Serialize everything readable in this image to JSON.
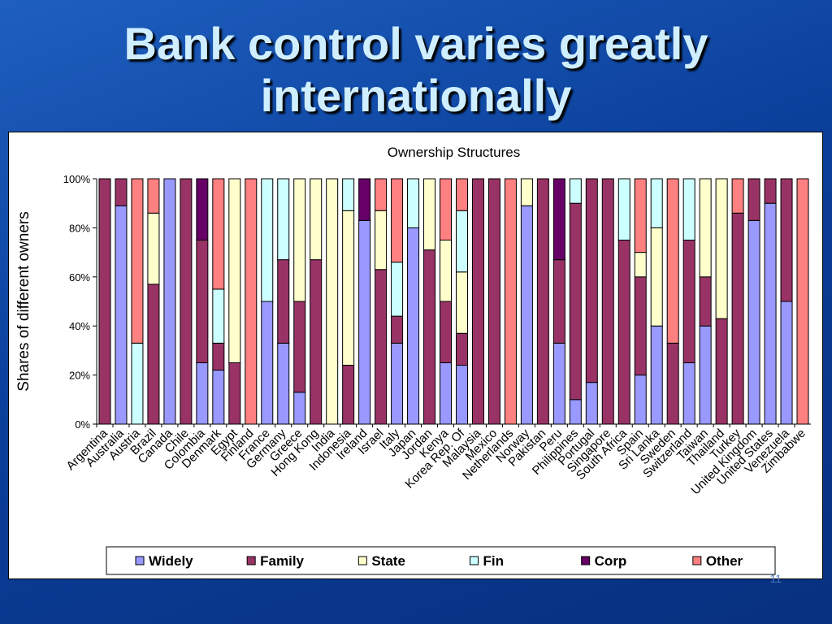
{
  "title": "Bank control varies greatly internationally",
  "page_number": "11",
  "chart_data": {
    "type": "bar",
    "stacked": true,
    "title": "Ownership Structures",
    "y_label": "Shares of different owners",
    "categories": [
      "Argentina",
      "Australia",
      "Austria",
      "Brazil",
      "Canada",
      "Chile",
      "Colombia",
      "Denmark",
      "Egypt",
      "Finland",
      "France",
      "Germany",
      "Greece",
      "Hong Kong",
      "India",
      "Indonesia",
      "Ireland",
      "Israel",
      "Italy",
      "Japan",
      "Jordan",
      "Kenya",
      "Korea Rep. Of",
      "Malaysia",
      "Mexico",
      "Netherlands",
      "Norway",
      "Pakistan",
      "Peru",
      "Philippines",
      "Portugal",
      "Singapore",
      "South Africa",
      "Spain",
      "Sri Lanka",
      "Sweden",
      "Switzerland",
      "Taiwan",
      "Thailand",
      "Turkey",
      "United Kingdom",
      "United States",
      "Venezuela",
      "Zimbabwe"
    ],
    "series": [
      {
        "name": "Widely",
        "color": "#9999ff",
        "values": [
          0,
          89,
          0,
          0,
          100,
          0,
          25,
          22,
          0,
          0,
          50,
          33,
          13,
          0,
          0,
          0,
          83,
          0,
          33,
          80,
          0,
          25,
          24,
          0,
          0,
          0,
          89,
          0,
          33,
          10,
          17,
          0,
          0,
          20,
          40,
          0,
          25,
          40,
          0,
          0,
          83,
          90,
          50,
          0
        ]
      },
      {
        "name": "Family",
        "color": "#993366",
        "values": [
          100,
          11,
          0,
          57,
          0,
          100,
          50,
          11,
          25,
          0,
          0,
          34,
          37,
          67,
          0,
          24,
          0,
          63,
          11,
          0,
          71,
          25,
          13,
          100,
          100,
          0,
          0,
          100,
          34,
          80,
          83,
          100,
          75,
          40,
          0,
          33,
          50,
          20,
          43,
          86,
          17,
          10,
          50,
          0
        ]
      },
      {
        "name": "State",
        "color": "#ffffcc",
        "values": [
          0,
          0,
          0,
          29,
          0,
          0,
          0,
          0,
          75,
          0,
          0,
          0,
          50,
          33,
          100,
          63,
          0,
          24,
          0,
          0,
          29,
          25,
          25,
          0,
          0,
          0,
          11,
          0,
          0,
          0,
          0,
          0,
          0,
          10,
          40,
          0,
          0,
          40,
          57,
          0,
          0,
          0,
          0,
          0
        ]
      },
      {
        "name": "Fin",
        "color": "#ccffff",
        "values": [
          0,
          0,
          33,
          0,
          0,
          0,
          0,
          22,
          0,
          0,
          50,
          33,
          0,
          0,
          0,
          13,
          0,
          0,
          22,
          20,
          0,
          0,
          25,
          0,
          0,
          0,
          0,
          0,
          0,
          10,
          0,
          0,
          25,
          0,
          20,
          0,
          25,
          0,
          0,
          0,
          0,
          0,
          0,
          0
        ]
      },
      {
        "name": "Corp",
        "color": "#660066",
        "values": [
          0,
          0,
          0,
          0,
          0,
          0,
          25,
          0,
          0,
          0,
          0,
          0,
          0,
          0,
          0,
          0,
          17,
          0,
          0,
          0,
          0,
          0,
          0,
          0,
          0,
          0,
          0,
          0,
          33,
          0,
          0,
          0,
          0,
          0,
          0,
          0,
          0,
          0,
          0,
          0,
          0,
          0,
          0,
          0
        ]
      },
      {
        "name": "Other",
        "color": "#ff8080",
        "values": [
          0,
          0,
          67,
          14,
          0,
          0,
          0,
          45,
          0,
          100,
          0,
          0,
          0,
          0,
          0,
          0,
          0,
          13,
          34,
          0,
          0,
          25,
          13,
          0,
          0,
          100,
          0,
          0,
          0,
          0,
          0,
          0,
          0,
          30,
          0,
          67,
          0,
          0,
          0,
          14,
          0,
          0,
          0,
          100
        ]
      }
    ],
    "ylim": [
      0,
      100
    ],
    "yticks": [
      {
        "value": 0,
        "label": "0%"
      },
      {
        "value": 20,
        "label": "20%"
      },
      {
        "value": 40,
        "label": "40%"
      },
      {
        "value": 60,
        "label": "60%"
      },
      {
        "value": 80,
        "label": "80%"
      },
      {
        "value": 100,
        "label": "100%"
      }
    ],
    "grid": false,
    "legend": "bottom"
  }
}
